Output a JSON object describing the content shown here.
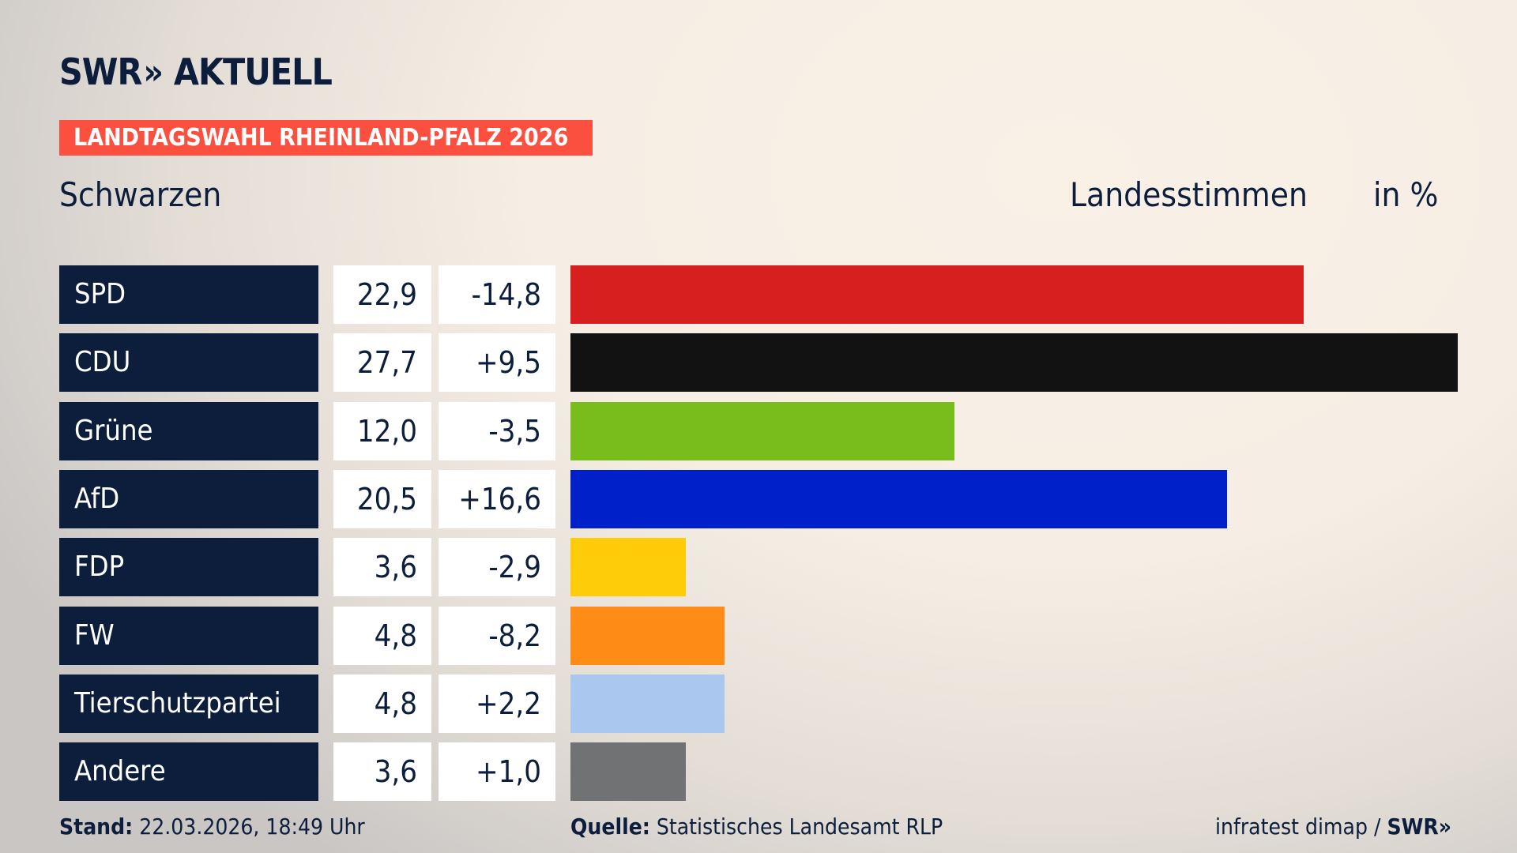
{
  "brand": {
    "logo": "SWR AKTUELL",
    "swr": "SWR",
    "aktuell": "AKTUELL"
  },
  "tag": "LANDTAGSWAHL RHEINLAND-PFALZ 2026",
  "region": "Schwarzen",
  "measure": "Landesstimmen",
  "unit": "in %",
  "chart_data": {
    "type": "bar",
    "orientation": "horizontal",
    "categories": [
      "SPD",
      "CDU",
      "Grüne",
      "AfD",
      "FDP",
      "FW",
      "Tierschutzpartei",
      "Andere"
    ],
    "values": [
      22.9,
      27.7,
      12.0,
      20.5,
      3.6,
      4.8,
      4.8,
      3.6
    ],
    "value_labels": [
      "22,9",
      "27,7",
      "12,0",
      "20,5",
      "3,6",
      "4,8",
      "4,8",
      "3,6"
    ],
    "diff_labels": [
      "-14,8",
      "+9,5",
      "-3,5",
      "+16,6",
      "-2,9",
      "-8,2",
      "+2,2",
      "+1,0"
    ],
    "colors": [
      "#d81f20",
      "#121212",
      "#79bd1c",
      "#0020c9",
      "#ffcc0a",
      "#ff8c17",
      "#aac8ef",
      "#717274"
    ],
    "xlabel": "",
    "ylabel": "Landesstimmen in %"
  },
  "footer": {
    "stand_label": "Stand:",
    "stand_value": "22.03.2026, 18:49 Uhr",
    "quelle_label": "Quelle:",
    "quelle_value": "Statistisches Landesamt RLP",
    "credit": "infratest dimap /",
    "credit_logo": "SWR"
  }
}
